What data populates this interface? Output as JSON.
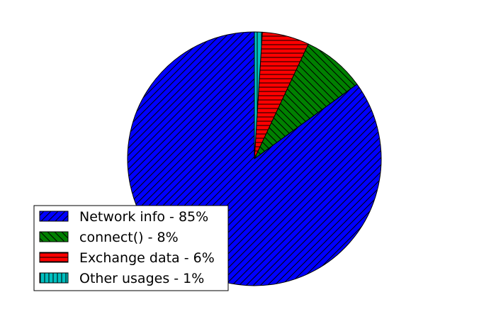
{
  "chart_data": {
    "type": "pie",
    "title": "",
    "slices": [
      {
        "label": "Network info - 85%",
        "value": 85,
        "color": "#0000ff",
        "hatch": "diagonal-up"
      },
      {
        "label": "connect() - 8%",
        "value": 8,
        "color": "#008000",
        "hatch": "diagonal-down"
      },
      {
        "label": "Exchange data - 6%",
        "value": 6,
        "color": "#ff0000",
        "hatch": "horizontal"
      },
      {
        "label": "Other usages - 1%",
        "value": 1,
        "color": "#00bfbf",
        "hatch": "vertical"
      }
    ],
    "start_angle_deg": 90,
    "direction": "counterclockwise",
    "legend_position": "lower-left",
    "edge_color": "#000000"
  }
}
